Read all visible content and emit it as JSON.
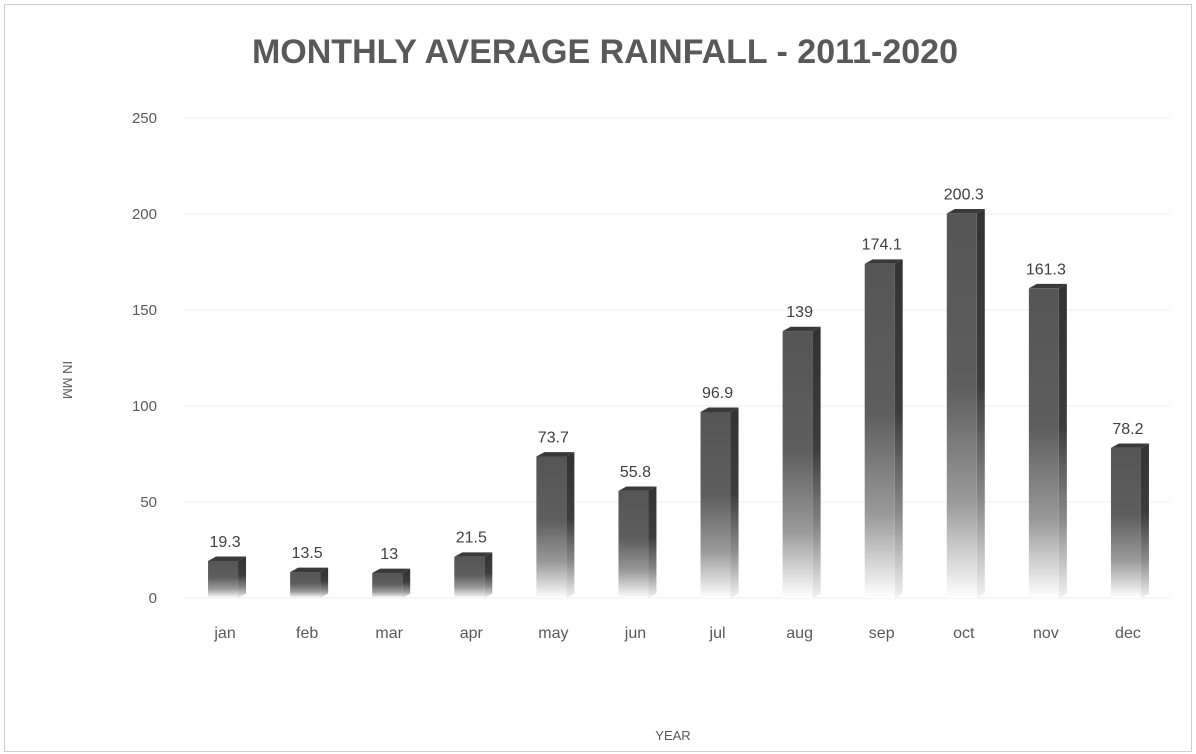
{
  "chart_data": {
    "type": "bar",
    "title": "MONTHLY AVERAGE RAINFALL - 2011-2020",
    "xlabel": "YEAR",
    "ylabel": "IN MM",
    "categories": [
      "jan",
      "feb",
      "mar",
      "apr",
      "may",
      "jun",
      "jul",
      "aug",
      "sep",
      "oct",
      "nov",
      "dec"
    ],
    "values": [
      19.3,
      13.5,
      13,
      21.5,
      73.7,
      55.8,
      96.9,
      139,
      174.1,
      200.3,
      161.3,
      78.2
    ],
    "data_labels": [
      "19.3",
      "13.5",
      "13",
      "21.5",
      "73.7",
      "55.8",
      "96.9",
      "139",
      "174.1",
      "200.3",
      "161.3",
      "78.2"
    ],
    "ylim": [
      0,
      250
    ],
    "yticks": [
      0,
      50,
      100,
      150,
      200,
      250
    ],
    "grid": true,
    "legend": "none",
    "bar_style": "3d-column-gradient",
    "colors": {
      "bar_top": "#555555",
      "bar_fade": "#ffffff",
      "bar_side": "#3a3a3a",
      "gridline": "#ececec",
      "text": "#595959"
    }
  }
}
